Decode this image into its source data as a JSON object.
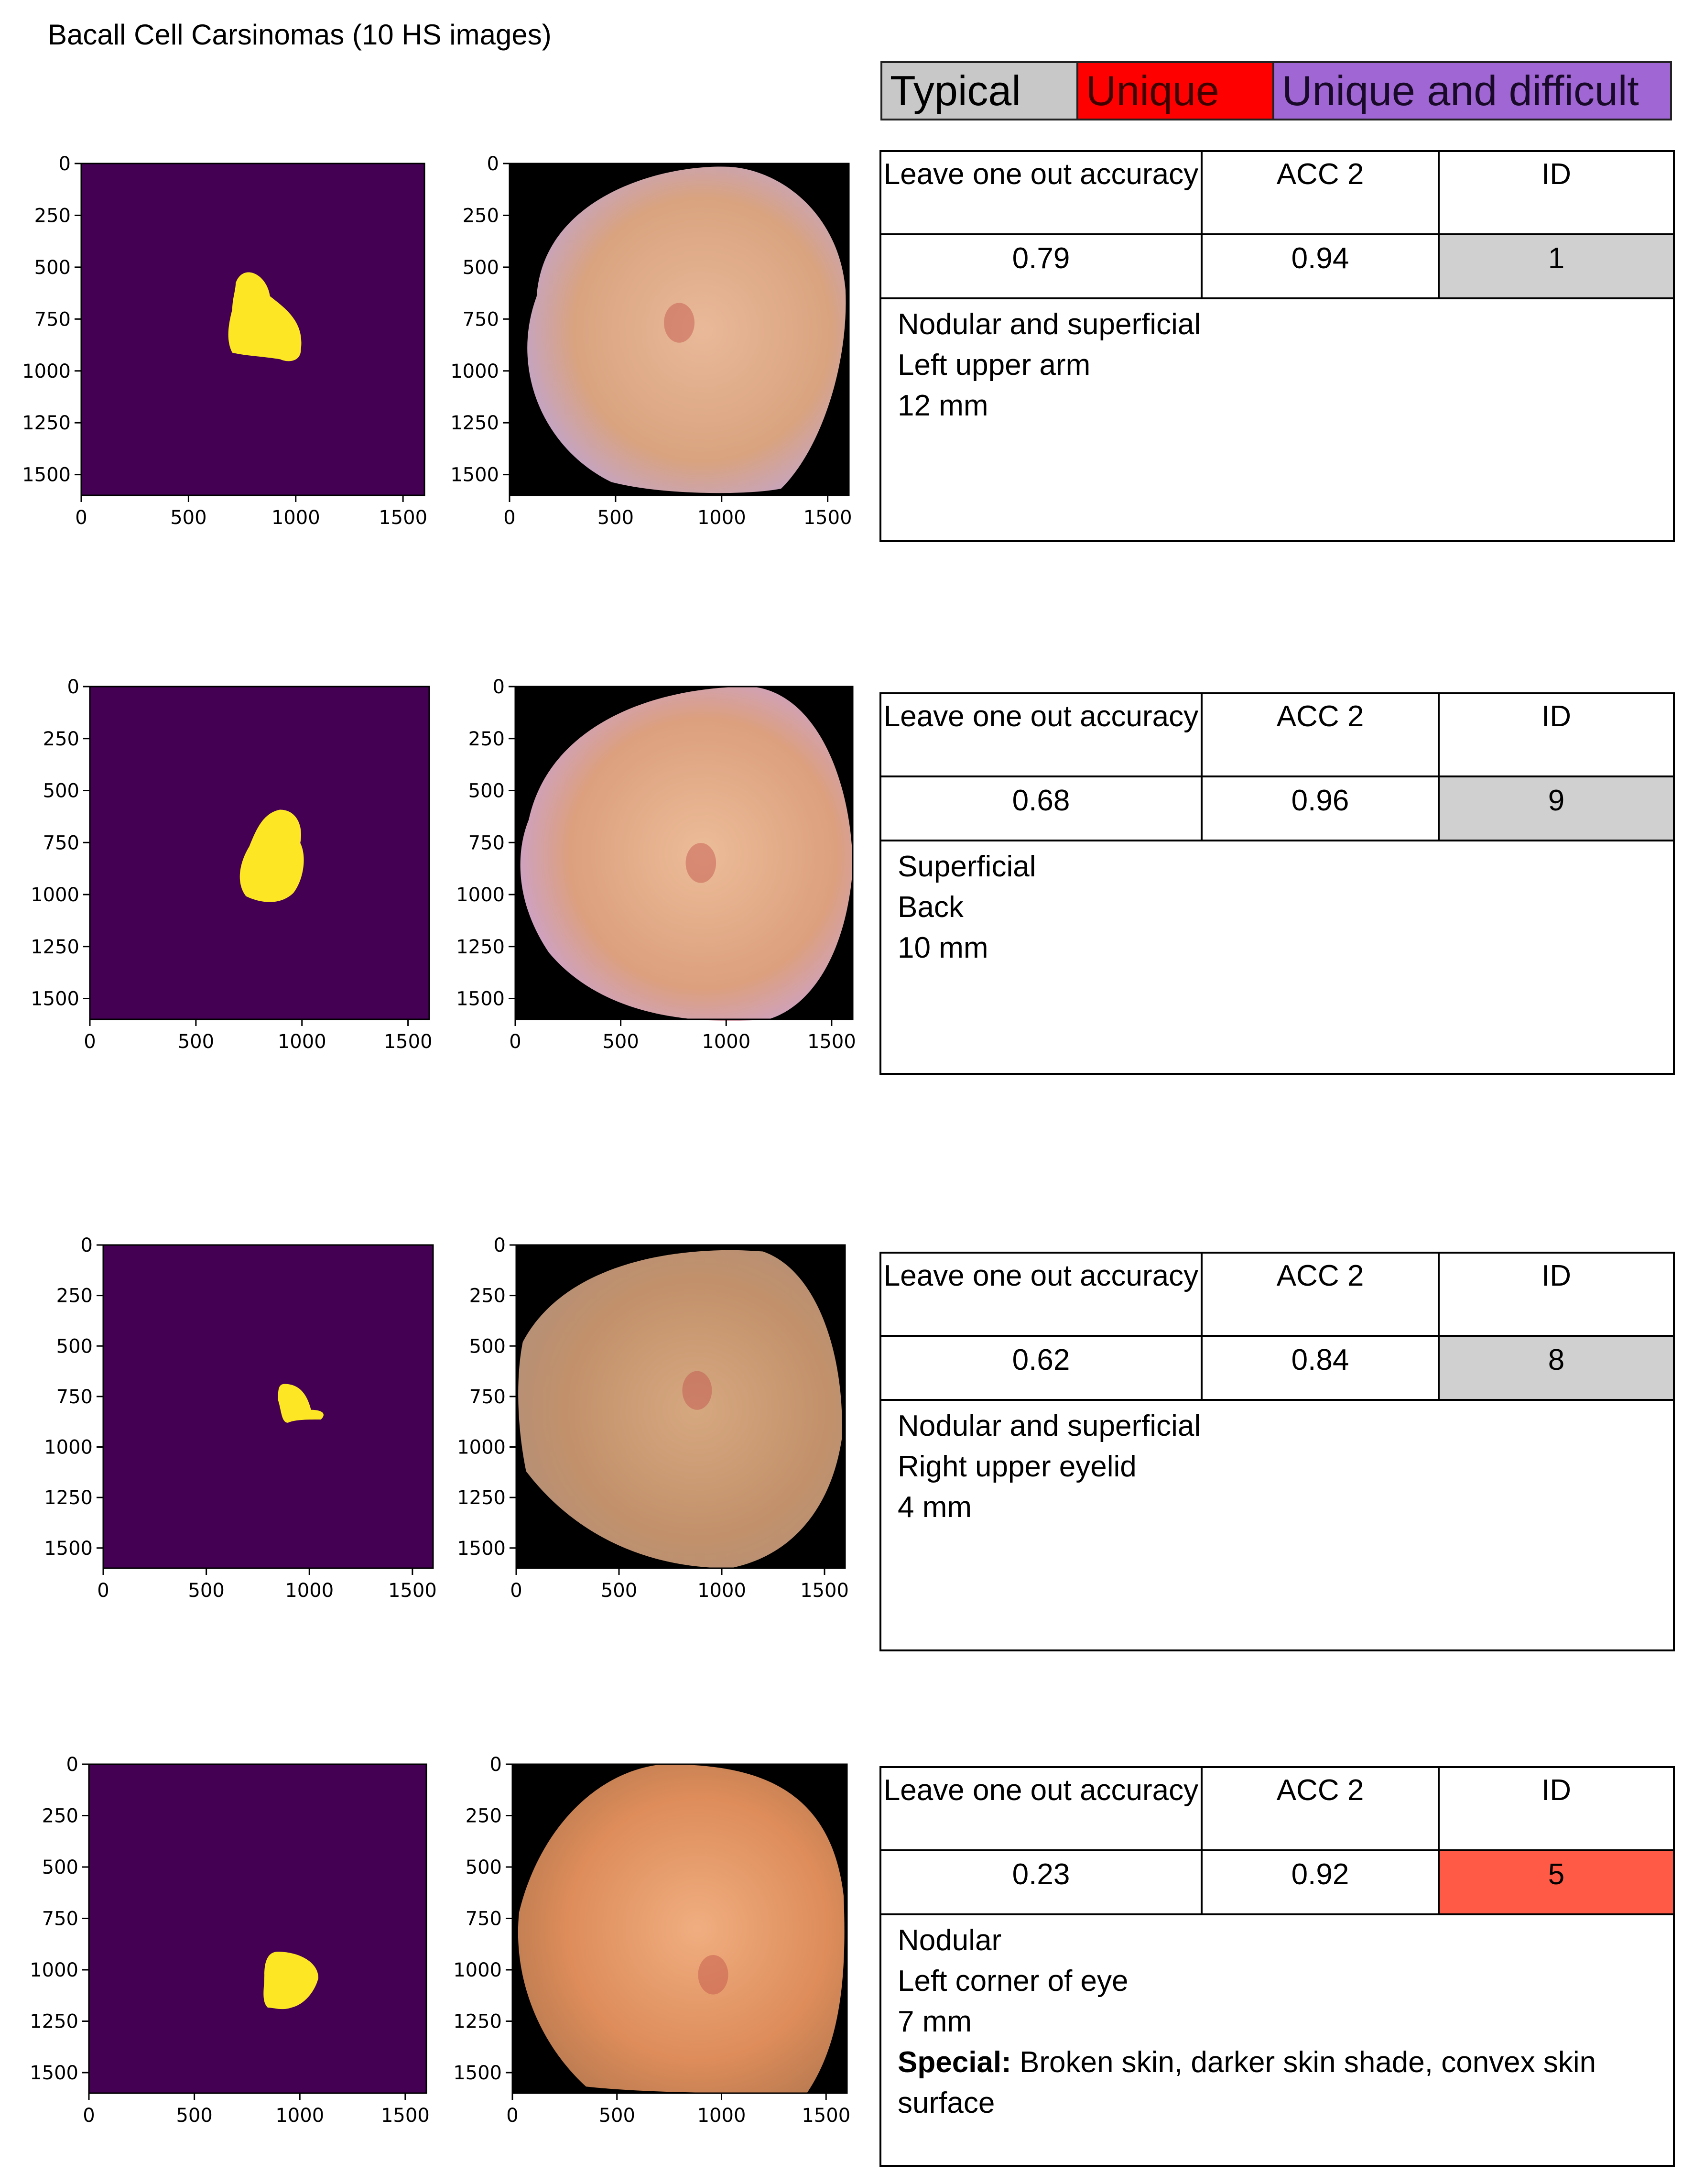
{
  "page": {
    "title": "Bacall Cell Carsinomas (10 HS images)"
  },
  "legend": [
    {
      "label": "Typical",
      "bg": "#c8c8c8",
      "fg": "#000000"
    },
    {
      "label": "Unique",
      "bg": "#ff0000",
      "fg": "#400000"
    },
    {
      "label": "Unique and difficult",
      "bg": "#a066d3",
      "fg": "#1a0a2a"
    }
  ],
  "table_headers": {
    "loo": "Leave one out accuracy",
    "acc2": "ACC 2",
    "id": "ID"
  },
  "axis": {
    "y_ticks": [
      "0",
      "250",
      "500",
      "750",
      "1000",
      "1250",
      "1500"
    ],
    "x_ticks": [
      "0",
      "500",
      "1000",
      "1500"
    ]
  },
  "colors": {
    "mask_bg": "#440154",
    "mask_fg": "#fde725",
    "typical": "#d0d0d0",
    "unique": "#ff5a45"
  },
  "cases": [
    {
      "loo": "0.79",
      "acc2": "0.94",
      "id": "1",
      "id_color": "#d0d0d0",
      "desc": [
        "Nodular and superficial",
        "Left upper arm",
        "12 mm"
      ]
    },
    {
      "loo": "0.68",
      "acc2": "0.96",
      "id": "9",
      "id_color": "#d0d0d0",
      "desc": [
        "Superficial",
        "Back",
        "10 mm"
      ]
    },
    {
      "loo": "0.62",
      "acc2": "0.84",
      "id": "8",
      "id_color": "#d0d0d0",
      "desc": [
        "Nodular and superficial",
        "Right upper eyelid",
        "4 mm"
      ]
    },
    {
      "loo": "0.23",
      "acc2": "0.92",
      "id": "5",
      "id_color": "#ff5a45",
      "desc": [
        "Nodular",
        "Left corner of eye",
        "7 mm"
      ],
      "special_label": "Special:",
      "special_text": "Broken skin, darker skin shade, convex skin surface"
    }
  ]
}
